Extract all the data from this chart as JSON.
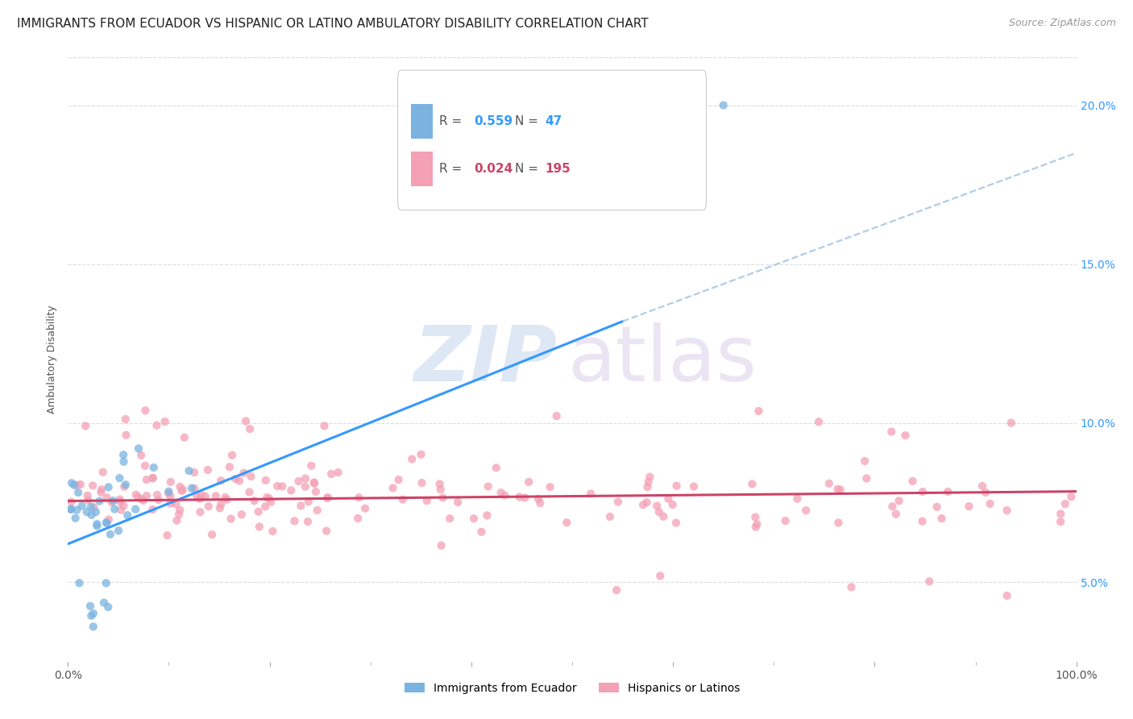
{
  "title": "IMMIGRANTS FROM ECUADOR VS HISPANIC OR LATINO AMBULATORY DISABILITY CORRELATION CHART",
  "source": "Source: ZipAtlas.com",
  "ylabel": "Ambulatory Disability",
  "ytick_values": [
    5.0,
    10.0,
    15.0,
    20.0
  ],
  "xmin": 0.0,
  "xmax": 100.0,
  "ymin": 2.5,
  "ymax": 21.5,
  "blue_color": "#7ab3e0",
  "blue_line_color": "#3399ff",
  "blue_dash_color": "#b0cce8",
  "pink_color": "#f4a0b5",
  "pink_line_color": "#cc4466",
  "grid_color": "#dddddd",
  "watermark_zip_color": "#c8d8ee",
  "watermark_atlas_color": "#d8cce8",
  "legend_R1": "0.559",
  "legend_N1": "47",
  "legend_R2": "0.024",
  "legend_N2": "195",
  "legend_label1": "Immigrants from Ecuador",
  "legend_label2": "Hispanics or Latinos",
  "blue_line_x0": 0.0,
  "blue_line_y0": 6.2,
  "blue_line_x1": 55.0,
  "blue_line_y1": 13.2,
  "blue_dash_x0": 55.0,
  "blue_dash_y0": 13.2,
  "blue_dash_x1": 100.0,
  "blue_dash_y1": 18.5,
  "pink_line_x0": 0.0,
  "pink_line_y0": 7.55,
  "pink_line_x1": 100.0,
  "pink_line_y1": 7.85,
  "title_fontsize": 11,
  "source_fontsize": 9,
  "axis_label_fontsize": 9,
  "tick_fontsize": 10,
  "legend_fontsize": 11
}
